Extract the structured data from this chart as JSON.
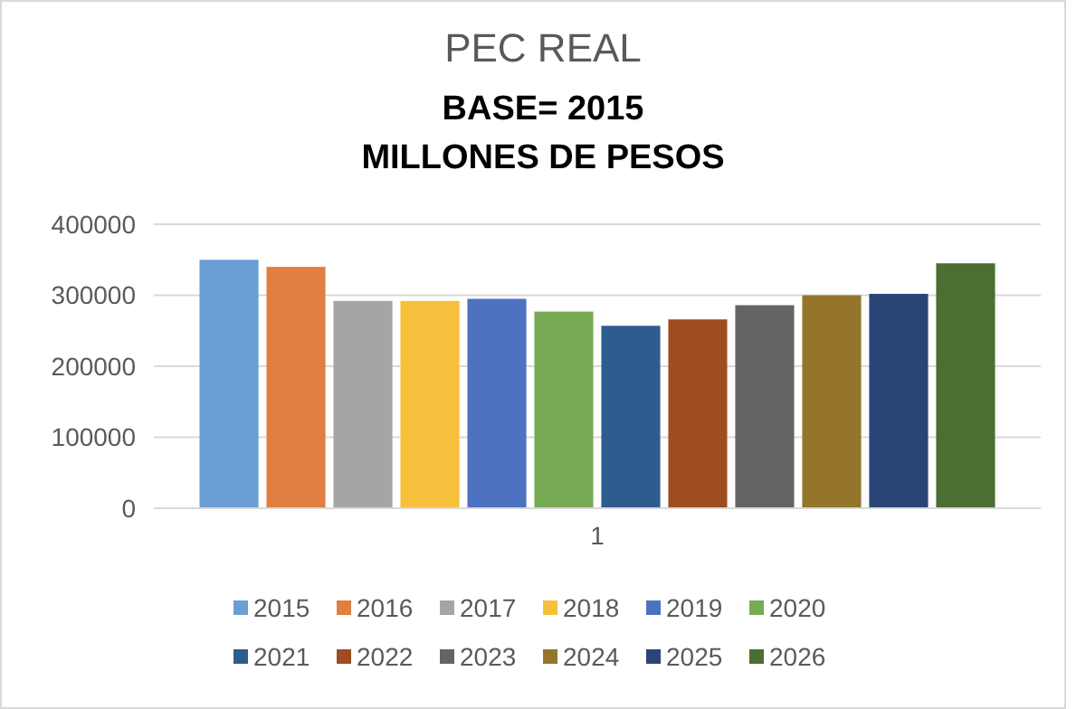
{
  "chart_data": {
    "type": "bar",
    "title": "PEC REAL",
    "subtitle": "BASE= 2015\nMILLONES DE PESOS",
    "categories": [
      "1"
    ],
    "series": [
      {
        "name": "2015",
        "color": "#6a9fd5",
        "values": [
          350000
        ]
      },
      {
        "name": "2016",
        "color": "#e07f3f",
        "values": [
          340000
        ]
      },
      {
        "name": "2017",
        "color": "#a5a5a5",
        "values": [
          292000
        ]
      },
      {
        "name": "2018",
        "color": "#f6c03d",
        "values": [
          292000
        ]
      },
      {
        "name": "2019",
        "color": "#4e72c2",
        "values": [
          295000
        ]
      },
      {
        "name": "2020",
        "color": "#78ab55",
        "values": [
          277000
        ]
      },
      {
        "name": "2021",
        "color": "#2f5c8f",
        "values": [
          257000
        ]
      },
      {
        "name": "2022",
        "color": "#9e4d22",
        "values": [
          266000
        ]
      },
      {
        "name": "2023",
        "color": "#646464",
        "values": [
          286000
        ]
      },
      {
        "name": "2024",
        "color": "#94752a",
        "values": [
          300000
        ]
      },
      {
        "name": "2025",
        "color": "#2b4477",
        "values": [
          302000
        ]
      },
      {
        "name": "2026",
        "color": "#4b6e32",
        "values": [
          345000
        ]
      }
    ],
    "ylim": [
      0,
      400000
    ],
    "yticks": [
      0,
      100000,
      200000,
      300000,
      400000
    ],
    "grid": "y",
    "legend": "bottom"
  }
}
